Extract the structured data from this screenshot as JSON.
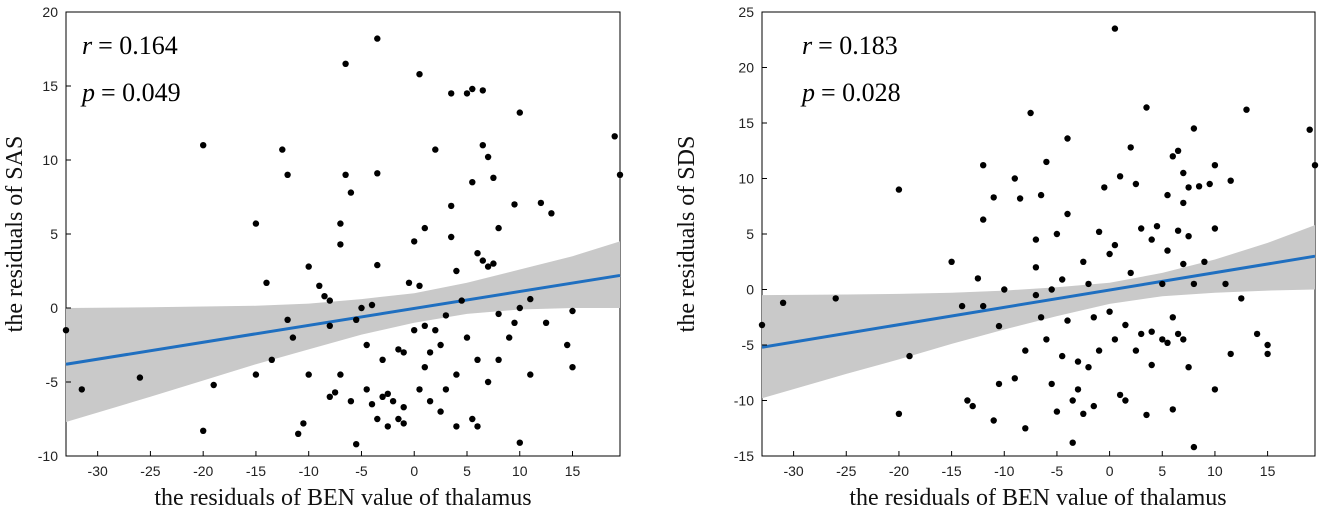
{
  "chart_data": [
    {
      "type": "scatter",
      "title": "",
      "xlabel": "the  residuals of BEN value of thalamus",
      "ylabel": "the  residuals of SAS",
      "xlim": [
        -33,
        19.5
      ],
      "ylim": [
        -10,
        20
      ],
      "xticks": [
        -30,
        -25,
        -20,
        -15,
        -10,
        -5,
        0,
        5,
        10,
        15
      ],
      "yticks": [
        -10,
        -5,
        0,
        5,
        10,
        15,
        20
      ],
      "stats": {
        "r_label": "r",
        "r_value": "= 0.164",
        "p_label": "p",
        "p_value": "= 0.049"
      },
      "line_color": "#1f6fc0",
      "band_color": "#c9c9c9",
      "fit_line": {
        "x": [
          -33,
          19.5
        ],
        "y": [
          -3.8,
          2.2
        ]
      },
      "ci_band": {
        "x": [
          -33,
          -25,
          -20,
          -15,
          -10,
          -5,
          0,
          5,
          10,
          15,
          19.5
        ],
        "upper": [
          0.0,
          0.05,
          0.1,
          0.15,
          0.3,
          0.6,
          1.0,
          1.7,
          2.6,
          3.5,
          4.5
        ],
        "lower": [
          -7.7,
          -6.0,
          -4.9,
          -3.8,
          -2.8,
          -1.8,
          -1.0,
          -0.4,
          -0.1,
          0.0,
          0.0
        ]
      },
      "points": [
        [
          -33,
          -1.5
        ],
        [
          -31.5,
          -5.5
        ],
        [
          -26,
          -4.7
        ],
        [
          -20,
          11.0
        ],
        [
          -20,
          -8.3
        ],
        [
          -19,
          -5.2
        ],
        [
          -15,
          5.7
        ],
        [
          -15,
          -4.5
        ],
        [
          -14,
          1.7
        ],
        [
          -13.5,
          -3.5
        ],
        [
          -12.5,
          10.7
        ],
        [
          -12,
          9.0
        ],
        [
          -12,
          -0.8
        ],
        [
          -11.5,
          -2.0
        ],
        [
          -11,
          -8.5
        ],
        [
          -10.5,
          -7.8
        ],
        [
          -10,
          2.8
        ],
        [
          -10,
          -4.5
        ],
        [
          -9,
          1.5
        ],
        [
          -8.5,
          0.8
        ],
        [
          -8,
          0.5
        ],
        [
          -8,
          -1.2
        ],
        [
          -8,
          -6.0
        ],
        [
          -7.5,
          -5.7
        ],
        [
          -7,
          5.7
        ],
        [
          -7,
          4.3
        ],
        [
          -7,
          -4.5
        ],
        [
          -6.5,
          9.0
        ],
        [
          -6.5,
          16.5
        ],
        [
          -6,
          7.8
        ],
        [
          -6,
          -6.3
        ],
        [
          -5.5,
          -0.8
        ],
        [
          -5.5,
          -9.2
        ],
        [
          -5,
          0.0
        ],
        [
          -4.5,
          -2.5
        ],
        [
          -4.5,
          -5.5
        ],
        [
          -4,
          0.2
        ],
        [
          -4,
          -6.5
        ],
        [
          -3.5,
          18.2
        ],
        [
          -3.5,
          9.1
        ],
        [
          -3.5,
          2.9
        ],
        [
          -3.5,
          -7.5
        ],
        [
          -3,
          -6.0
        ],
        [
          -3,
          -3.5
        ],
        [
          -2.5,
          -5.8
        ],
        [
          -2.5,
          -8.0
        ],
        [
          -2,
          -6.3
        ],
        [
          -1.5,
          -7.5
        ],
        [
          -1.5,
          -2.8
        ],
        [
          -1,
          -6.7
        ],
        [
          -1,
          -7.8
        ],
        [
          -1,
          -3.0
        ],
        [
          -0.5,
          1.7
        ],
        [
          0,
          4.5
        ],
        [
          0,
          -1.5
        ],
        [
          0.5,
          15.8
        ],
        [
          0.5,
          1.5
        ],
        [
          0.5,
          -5.5
        ],
        [
          1,
          5.4
        ],
        [
          1,
          -1.2
        ],
        [
          1,
          -4.0
        ],
        [
          1.5,
          -6.3
        ],
        [
          1.5,
          -3.0
        ],
        [
          2,
          10.7
        ],
        [
          2,
          -1.5
        ],
        [
          2.5,
          -2.5
        ],
        [
          2.5,
          -7.0
        ],
        [
          3,
          -5.5
        ],
        [
          3,
          -0.5
        ],
        [
          3.5,
          14.5
        ],
        [
          3.5,
          6.9
        ],
        [
          3.5,
          4.8
        ],
        [
          4,
          2.5
        ],
        [
          4,
          -4.5
        ],
        [
          4,
          -8.0
        ],
        [
          4.5,
          0.5
        ],
        [
          5,
          14.5
        ],
        [
          5,
          -2.0
        ],
        [
          5.5,
          14.8
        ],
        [
          5.5,
          8.5
        ],
        [
          5.5,
          -7.5
        ],
        [
          6,
          3.7
        ],
        [
          6,
          -3.5
        ],
        [
          6,
          -8.0
        ],
        [
          6.5,
          14.7
        ],
        [
          6.5,
          11.0
        ],
        [
          6.5,
          3.2
        ],
        [
          7,
          10.2
        ],
        [
          7,
          2.8
        ],
        [
          7,
          -5.0
        ],
        [
          7.5,
          8.8
        ],
        [
          7.5,
          3.0
        ],
        [
          8,
          5.4
        ],
        [
          8,
          -0.4
        ],
        [
          8,
          -3.5
        ],
        [
          9,
          -2.0
        ],
        [
          9.5,
          7.0
        ],
        [
          9.5,
          -1.0
        ],
        [
          10,
          13.2
        ],
        [
          10,
          0.0
        ],
        [
          10,
          -9.1
        ],
        [
          11,
          0.6
        ],
        [
          11,
          -4.5
        ],
        [
          12,
          7.1
        ],
        [
          12.5,
          -1.0
        ],
        [
          13,
          6.4
        ],
        [
          14.5,
          -2.5
        ],
        [
          15,
          -0.2
        ],
        [
          15,
          -4.0
        ],
        [
          19,
          11.6
        ],
        [
          19.5,
          9.0
        ]
      ]
    },
    {
      "type": "scatter",
      "title": "",
      "xlabel": "the  residuals of BEN value of thalamus",
      "ylabel": "the  residuals of SDS",
      "xlim": [
        -33,
        19.5
      ],
      "ylim": [
        -15,
        25
      ],
      "xticks": [
        -30,
        -25,
        -20,
        -15,
        -10,
        -5,
        0,
        5,
        10,
        15
      ],
      "yticks": [
        -15,
        -10,
        -5,
        0,
        5,
        10,
        15,
        20,
        25
      ],
      "stats": {
        "r_label": "r",
        "r_value": "= 0.183",
        "p_label": "p",
        "p_value": "= 0.028"
      },
      "line_color": "#1f6fc0",
      "band_color": "#c9c9c9",
      "fit_line": {
        "x": [
          -33,
          19.5
        ],
        "y": [
          -5.2,
          3.0
        ]
      },
      "ci_band": {
        "x": [
          -33,
          -25,
          -20,
          -15,
          -10,
          -5,
          0,
          5,
          10,
          15,
          19.5
        ],
        "upper": [
          -0.5,
          -0.45,
          -0.4,
          -0.3,
          -0.1,
          0.2,
          0.6,
          1.5,
          2.7,
          4.2,
          5.8
        ],
        "lower": [
          -9.8,
          -7.6,
          -6.3,
          -4.9,
          -3.6,
          -2.4,
          -1.3,
          -0.6,
          -0.3,
          -0.1,
          0.0
        ]
      },
      "points": [
        [
          -33,
          -3.2
        ],
        [
          -31,
          -1.2
        ],
        [
          -26,
          -0.8
        ],
        [
          -20,
          9.0
        ],
        [
          -20,
          -11.2
        ],
        [
          -19,
          -6.0
        ],
        [
          -15,
          2.5
        ],
        [
          -14,
          -1.5
        ],
        [
          -13.5,
          -10.0
        ],
        [
          -13,
          -10.5
        ],
        [
          -12.5,
          1.0
        ],
        [
          -12,
          11.2
        ],
        [
          -12,
          6.3
        ],
        [
          -12,
          -1.5
        ],
        [
          -11,
          8.3
        ],
        [
          -11,
          -11.8
        ],
        [
          -10.5,
          -3.3
        ],
        [
          -10.5,
          -8.5
        ],
        [
          -10,
          0.0
        ],
        [
          -9,
          10.0
        ],
        [
          -9,
          -8.0
        ],
        [
          -8.5,
          8.2
        ],
        [
          -8,
          -5.5
        ],
        [
          -8,
          -12.5
        ],
        [
          -7.5,
          15.9
        ],
        [
          -7,
          4.5
        ],
        [
          -7,
          2.0
        ],
        [
          -7,
          -0.5
        ],
        [
          -6.5,
          8.5
        ],
        [
          -6.5,
          -2.5
        ],
        [
          -6,
          11.5
        ],
        [
          -6,
          -4.5
        ],
        [
          -5.5,
          -8.5
        ],
        [
          -5.5,
          0.0
        ],
        [
          -5,
          5.0
        ],
        [
          -5,
          -11.0
        ],
        [
          -4.5,
          0.9
        ],
        [
          -4.5,
          -6.0
        ],
        [
          -4,
          -2.8
        ],
        [
          -4,
          6.8
        ],
        [
          -4,
          13.6
        ],
        [
          -3.5,
          -10.0
        ],
        [
          -3.5,
          -13.8
        ],
        [
          -3,
          -6.5
        ],
        [
          -3,
          -9.0
        ],
        [
          -2.5,
          2.5
        ],
        [
          -2.5,
          -11.2
        ],
        [
          -2,
          0.5
        ],
        [
          -2,
          -7.0
        ],
        [
          -1.5,
          -10.5
        ],
        [
          -1.5,
          -2.5
        ],
        [
          -1,
          5.2
        ],
        [
          -1,
          -5.5
        ],
        [
          -0.5,
          9.2
        ],
        [
          0,
          3.2
        ],
        [
          0,
          -2.0
        ],
        [
          0.5,
          23.5
        ],
        [
          0.5,
          4.0
        ],
        [
          0.5,
          -4.5
        ],
        [
          1,
          10.2
        ],
        [
          1,
          -9.5
        ],
        [
          1.5,
          -3.2
        ],
        [
          1.5,
          -10.0
        ],
        [
          2,
          12.8
        ],
        [
          2,
          1.5
        ],
        [
          2.5,
          9.5
        ],
        [
          2.5,
          -5.5
        ],
        [
          3,
          5.5
        ],
        [
          3,
          -4.0
        ],
        [
          3.5,
          16.4
        ],
        [
          3.5,
          -11.3
        ],
        [
          4,
          4.5
        ],
        [
          4,
          -3.8
        ],
        [
          4,
          -6.8
        ],
        [
          4.5,
          5.7
        ],
        [
          5,
          0.5
        ],
        [
          5,
          -4.5
        ],
        [
          5.5,
          8.5
        ],
        [
          5.5,
          3.5
        ],
        [
          5.5,
          -4.8
        ],
        [
          6,
          12.0
        ],
        [
          6,
          -2.5
        ],
        [
          6,
          -10.8
        ],
        [
          6.5,
          12.5
        ],
        [
          6.5,
          5.3
        ],
        [
          6.5,
          -4.0
        ],
        [
          7,
          10.5
        ],
        [
          7,
          7.8
        ],
        [
          7,
          2.3
        ],
        [
          7,
          -4.5
        ],
        [
          7.5,
          9.2
        ],
        [
          7.5,
          4.8
        ],
        [
          7.5,
          -7.0
        ],
        [
          8,
          14.5
        ],
        [
          8,
          0.5
        ],
        [
          8,
          -14.2
        ],
        [
          8.5,
          9.3
        ],
        [
          9,
          2.5
        ],
        [
          9.5,
          9.5
        ],
        [
          10,
          11.2
        ],
        [
          10,
          5.5
        ],
        [
          10,
          -9.0
        ],
        [
          11,
          0.5
        ],
        [
          11.5,
          9.8
        ],
        [
          11.5,
          -5.8
        ],
        [
          12.5,
          -0.8
        ],
        [
          13,
          16.2
        ],
        [
          14,
          -4.0
        ],
        [
          15,
          -5.8
        ],
        [
          15,
          -5.0
        ],
        [
          19,
          14.4
        ],
        [
          19.5,
          11.2
        ]
      ]
    }
  ]
}
